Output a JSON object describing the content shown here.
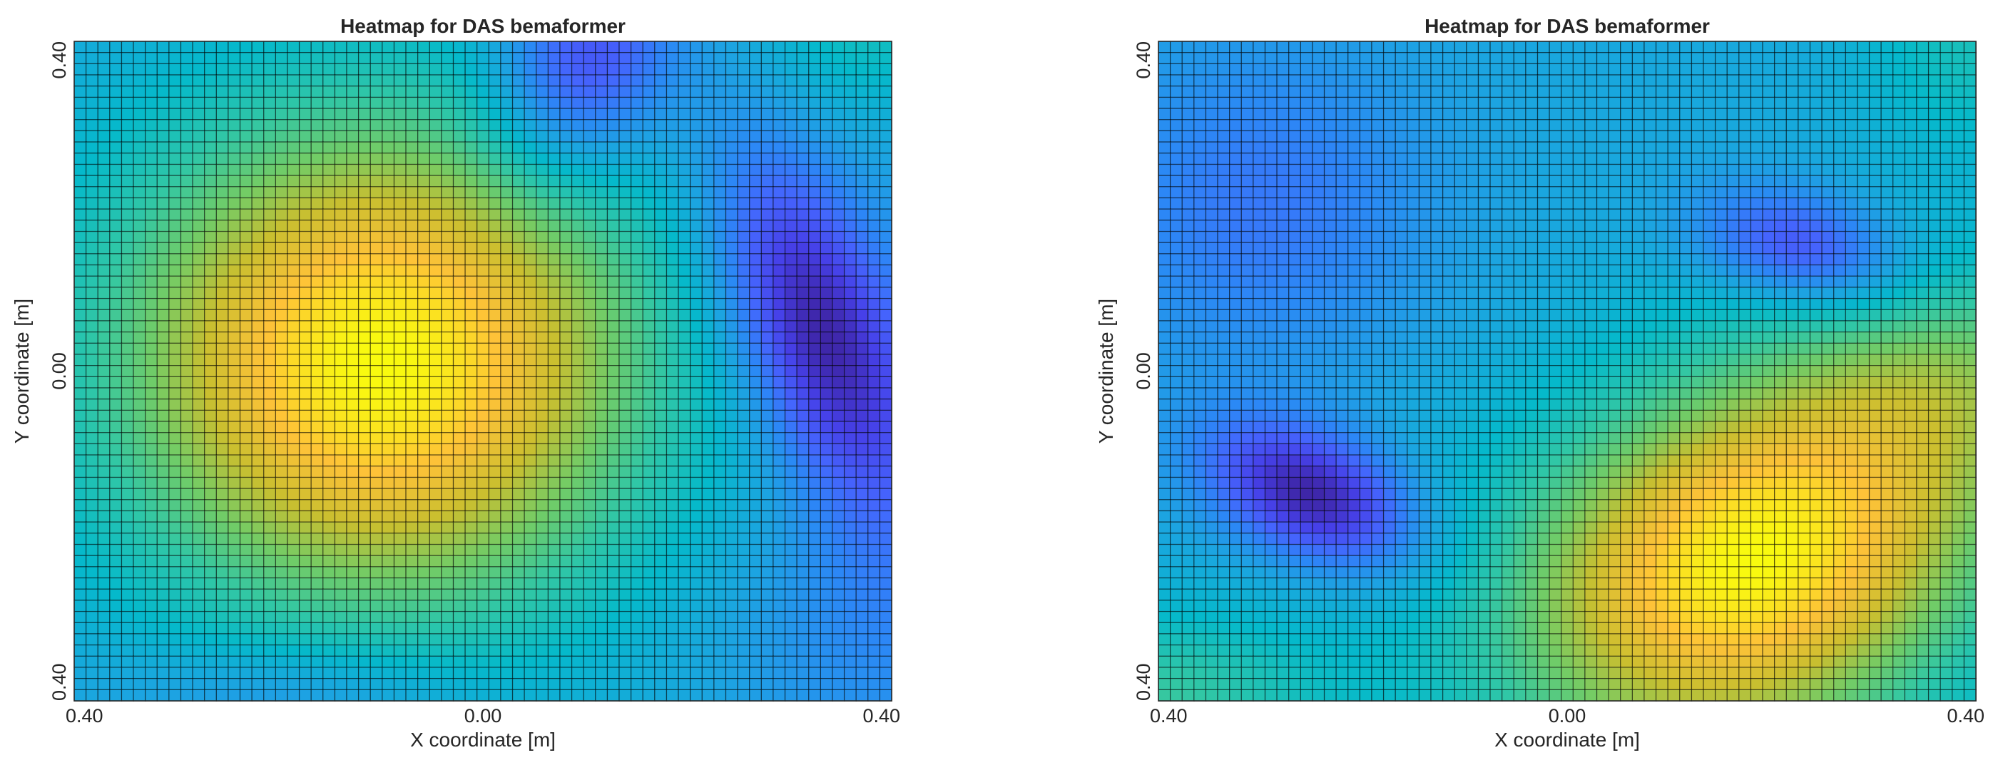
{
  "chart_data": [
    {
      "type": "heatmap",
      "title": "Heatmap for DAS bemaformer",
      "xlabel": "X coordinate [m]",
      "ylabel": "Y coordinate [m]",
      "xlim": [
        -0.4,
        0.4
      ],
      "ylim": [
        -0.4,
        0.4
      ],
      "x_ticks": [
        -0.4,
        0.0,
        0.4
      ],
      "y_ticks": [
        -0.4,
        0.0,
        0.4
      ],
      "x_tick_labels": [
        "0.40",
        "0.00",
        "0.40"
      ],
      "y_tick_labels": [
        "0.40",
        "0.00",
        "0.40"
      ],
      "grid_cells": [
        69,
        59
      ],
      "colormap": "parula",
      "colorbar": false,
      "features": [
        {
          "kind": "max",
          "x": -0.1,
          "y": 0.02,
          "level": 1.0
        },
        {
          "kind": "min",
          "x": 0.36,
          "y": 0.03,
          "level": 0.12
        },
        {
          "kind": "min",
          "x": 0.1,
          "y": 0.38,
          "level": 0.22
        },
        {
          "kind": "min",
          "x": -0.18,
          "y": -0.38,
          "level": 0.45
        }
      ]
    },
    {
      "type": "heatmap",
      "title": "Heatmap for DAS bemaformer",
      "xlabel": "X coordinate [m]",
      "ylabel": "Y coordinate [m]",
      "xlim": [
        -0.4,
        0.4
      ],
      "ylim": [
        -0.4,
        0.4
      ],
      "x_ticks": [
        -0.4,
        0.0,
        0.4
      ],
      "y_ticks": [
        -0.4,
        0.0,
        0.4
      ],
      "x_tick_labels": [
        "0.40",
        "0.00",
        "0.40"
      ],
      "y_tick_labels": [
        "0.40",
        "0.00",
        "0.40"
      ],
      "grid_cells": [
        69,
        59
      ],
      "colormap": "parula",
      "colorbar": false,
      "features": [
        {
          "kind": "max",
          "x": 0.18,
          "y": -0.2,
          "level": 1.0
        },
        {
          "kind": "min",
          "x": -0.24,
          "y": -0.15,
          "level": 0.15
        },
        {
          "kind": "min",
          "x": 0.23,
          "y": 0.14,
          "level": 0.25
        }
      ]
    }
  ]
}
